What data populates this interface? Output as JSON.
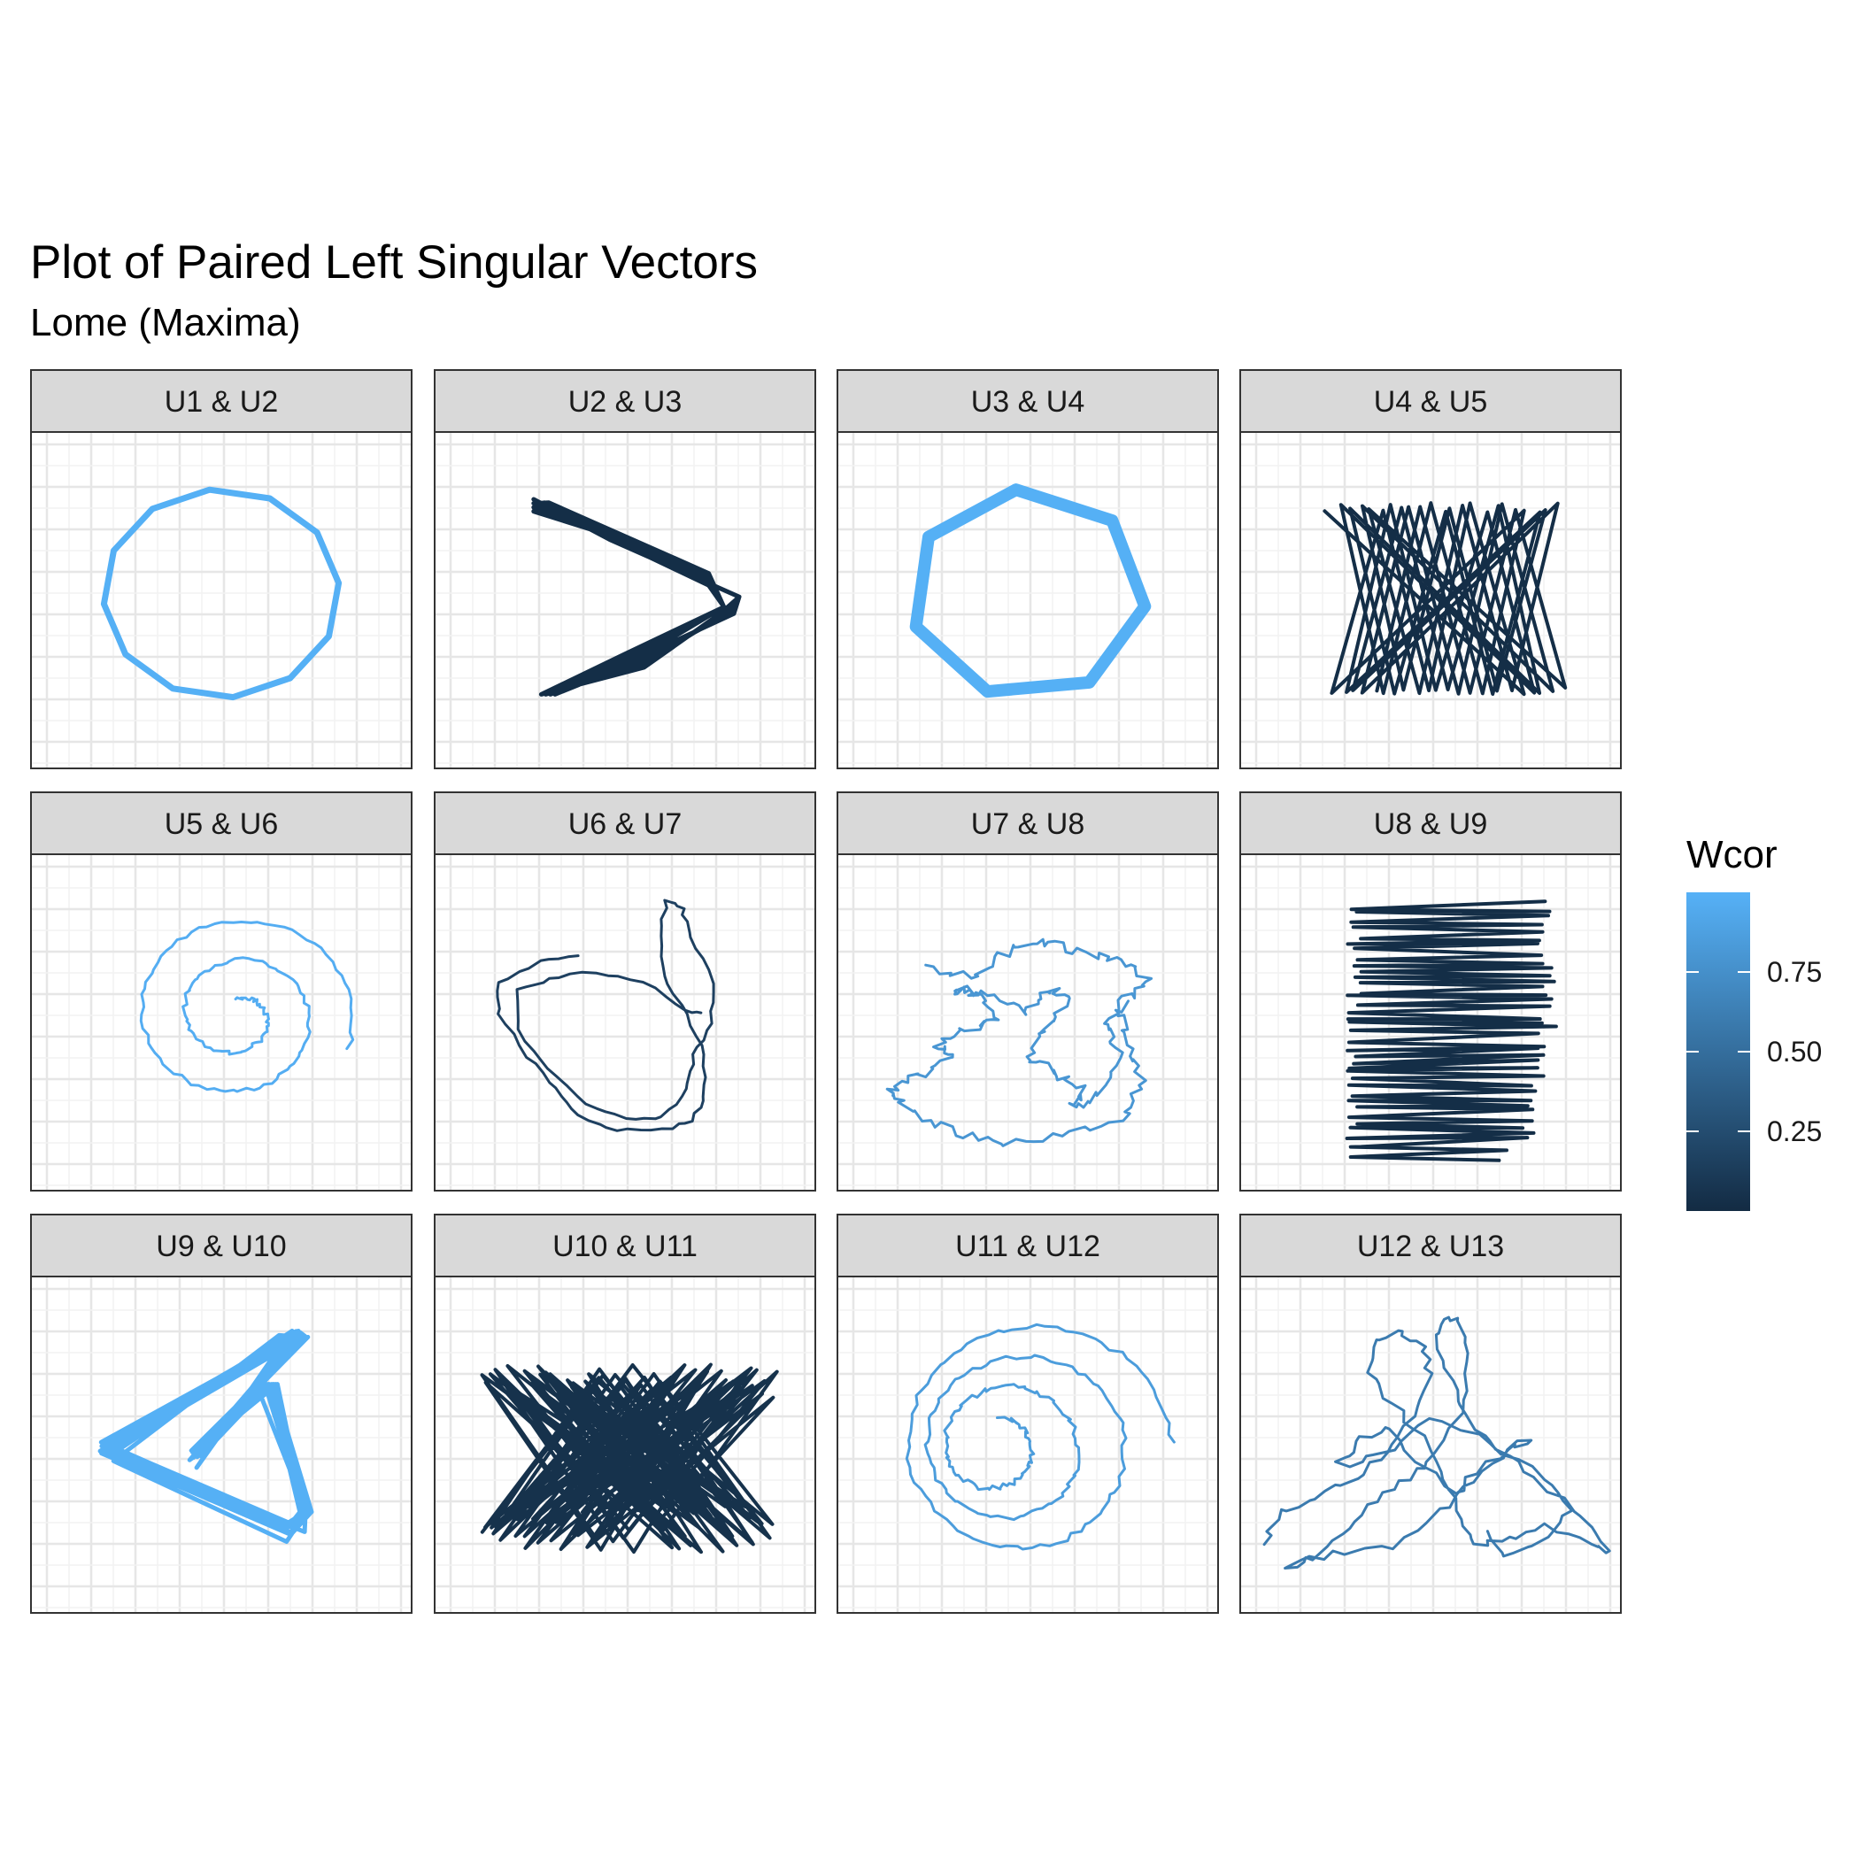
{
  "chart_data": {
    "type": "line",
    "title": "Plot of Paired Left Singular Vectors",
    "subtitle": "Lome (Maxima)",
    "grid": true,
    "layout": {
      "rows": 3,
      "cols": 4
    },
    "legend": {
      "title": "Wcor",
      "placement": "right",
      "breaks": [
        0.25,
        0.5,
        0.75
      ],
      "labels": [
        "0.25",
        "0.50",
        "0.75"
      ],
      "range": [
        0.0,
        1.0
      ],
      "low_color": "#132B43",
      "high_color": "#56B1F7"
    },
    "panels": [
      {
        "label": "U1  &  U2",
        "wcor": 0.99,
        "shape": "polygon",
        "k": 12,
        "width": 7
      },
      {
        "label": "U2  &  U3",
        "wcor": 0.02,
        "shape": "chevron",
        "width": 5
      },
      {
        "label": "U3  &  U4",
        "wcor": 0.99,
        "shape": "polygon",
        "k": 7,
        "width": 14
      },
      {
        "label": "U4  &  U5",
        "wcor": 0.02,
        "shape": "zigzag-v",
        "width": 4
      },
      {
        "label": "U5  &  U6",
        "wcor": 0.97,
        "shape": "spiral",
        "width": 3
      },
      {
        "label": "U6  &  U7",
        "wcor": 0.16,
        "shape": "loop",
        "width": 3
      },
      {
        "label": "U7  &  U8",
        "wcor": 0.8,
        "shape": "noisy",
        "width": 3
      },
      {
        "label": "U8  &  U9",
        "wcor": 0.02,
        "shape": "zigzag-h",
        "width": 4
      },
      {
        "label": "U9  &  U10",
        "wcor": 0.99,
        "shape": "triangle",
        "width": 5
      },
      {
        "label": "U10  &  U11",
        "wcor": 0.05,
        "shape": "band",
        "width": 4
      },
      {
        "label": "U11  &  U12",
        "wcor": 0.85,
        "shape": "nested",
        "width": 3
      },
      {
        "label": "U12  &  U13",
        "wcor": 0.6,
        "shape": "tangle",
        "width": 3
      }
    ]
  }
}
